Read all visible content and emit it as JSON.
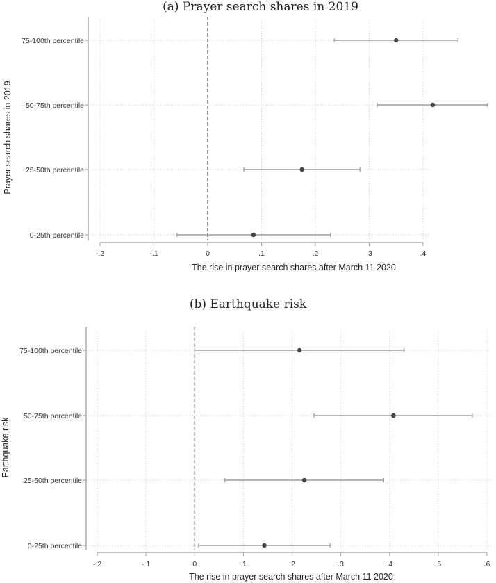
{
  "chart_data": [
    {
      "type": "scatter",
      "title": "(a) Prayer search shares in 2019",
      "xlabel": "The rise in prayer search shares after March 11 2020",
      "ylabel": "Prayer search shares in 2019",
      "xlim": [
        -0.2,
        0.4
      ],
      "xticks": [
        "-.2",
        "-.1",
        "0",
        ".1",
        ".2",
        ".3",
        ".4"
      ],
      "reference_line_x": 0,
      "grid": true,
      "categories": [
        "75-100th percentile",
        "50-75th percentile",
        "25-50th percentile",
        "0-25th percentile"
      ],
      "estimates": [
        0.35,
        0.418,
        0.175,
        0.085
      ],
      "ci_low": [
        0.235,
        0.315,
        0.067,
        -0.057
      ],
      "ci_high": [
        0.465,
        0.52,
        0.283,
        0.228
      ]
    },
    {
      "type": "scatter",
      "title": "(b) Earthquake risk",
      "xlabel": "The rise in prayer search shares after March 11 2020",
      "ylabel": "Earthquake risk",
      "xlim": [
        -0.2,
        0.6
      ],
      "xticks": [
        "-.2",
        "-.1",
        "0",
        ".1",
        ".2",
        ".3",
        ".4",
        ".5",
        ".6"
      ],
      "reference_line_x": 0,
      "grid": true,
      "categories": [
        "75-100th percentile",
        "50-75th percentile",
        "25-50th percentile",
        "0-25th percentile"
      ],
      "estimates": [
        0.215,
        0.408,
        0.225,
        0.143
      ],
      "ci_low": [
        0.0,
        0.245,
        0.062,
        0.008
      ],
      "ci_high": [
        0.43,
        0.57,
        0.388,
        0.278
      ]
    }
  ]
}
